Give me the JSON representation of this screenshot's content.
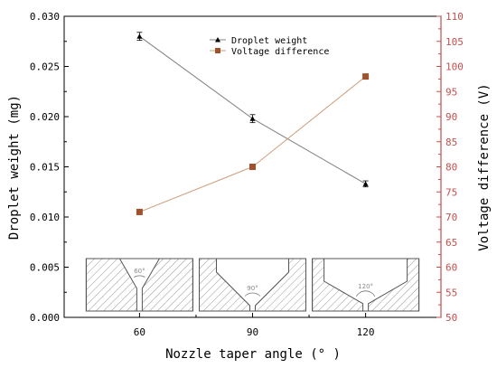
{
  "chart_data": {
    "type": "line",
    "x": [
      60,
      90,
      120
    ],
    "xlabel": "Nozzle taper angle (° )",
    "xlim": [
      40,
      140
    ],
    "xticks": [
      60,
      90,
      120
    ],
    "ylabel_left": "Droplet weight (mg)",
    "ylim_left": [
      0,
      0.03
    ],
    "yticks_left": [
      "0.000",
      "0.005",
      "0.010",
      "0.015",
      "0.020",
      "0.025",
      "0.030"
    ],
    "ylabel_right": "Voltage difference (V)",
    "ylim_right": [
      50,
      110
    ],
    "yticks_right": [
      "50",
      "55",
      "60",
      "65",
      "70",
      "75",
      "80",
      "85",
      "90",
      "95",
      "100",
      "105",
      "110"
    ],
    "legend_position": "top-center",
    "series": [
      {
        "name": "Droplet weight",
        "axis": "left",
        "values": [
          0.028,
          0.0198,
          0.0133
        ],
        "error": [
          0.0004,
          0.0004,
          0.0003
        ],
        "marker": "triangle",
        "color": "#000000",
        "line_color": "#808080"
      },
      {
        "name": "Voltage difference",
        "axis": "right",
        "values": [
          71,
          80,
          98
        ],
        "marker": "square",
        "color": "#a0522d",
        "line_color": "#cd9b7a"
      }
    ],
    "insets": [
      {
        "x": 60,
        "angle_label": "60°"
      },
      {
        "x": 90,
        "angle_label": "90°"
      },
      {
        "x": 120,
        "angle_label": "120°"
      }
    ],
    "colors": {
      "right_axis": "#c0504d",
      "inset_hatch": "#9a9a9a"
    }
  }
}
